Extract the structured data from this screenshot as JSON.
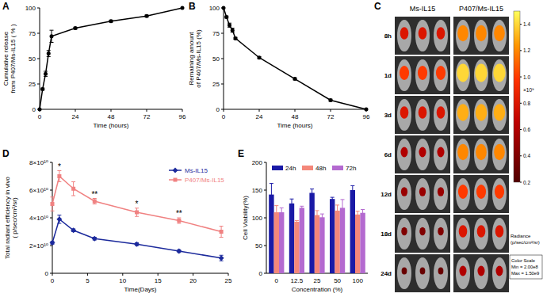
{
  "chart_data": [
    {
      "label": "A",
      "type": "line",
      "x_label": "Time (hours)",
      "y_label": [
        "Cumulative release",
        "from P407/Ms-IL15 ( % )"
      ],
      "x": [
        0,
        2,
        4,
        6,
        8,
        24,
        48,
        72,
        96
      ],
      "series": [
        {
          "color": "#000000",
          "marker": "circle",
          "values": [
            0,
            20,
            35,
            55,
            72,
            80,
            87,
            92,
            100
          ],
          "errors": [
            0,
            1,
            2.5,
            3,
            6,
            1,
            1,
            1,
            0
          ]
        }
      ],
      "xlim": [
        0,
        96
      ],
      "xticks": [
        0,
        24,
        48,
        72,
        96
      ],
      "ylim": [
        0,
        100
      ],
      "yticks": [
        0,
        25,
        50,
        75,
        100
      ]
    },
    {
      "label": "B",
      "type": "line",
      "x_label": "Time (hours)",
      "y_label": [
        "Remaining amount",
        "of P407/Ms-IL15 (%)"
      ],
      "x": [
        0,
        2,
        4,
        6,
        8,
        24,
        48,
        72,
        96
      ],
      "series": [
        {
          "color": "#000000",
          "marker": "circle",
          "values": [
            100,
            91,
            83,
            78,
            70,
            51,
            30,
            9,
            0
          ],
          "errors": [
            0,
            1,
            2,
            2,
            1,
            1,
            1,
            1,
            0
          ]
        }
      ],
      "xlim": [
        0,
        96
      ],
      "xticks": [
        0,
        24,
        48,
        72,
        96
      ],
      "ylim": [
        0,
        100
      ],
      "yticks": [
        0,
        25,
        50,
        75,
        100
      ]
    },
    {
      "label": "C",
      "type": "image",
      "columns": [
        "Ms-IL15",
        "P407/Ms-IL15"
      ],
      "rows": [
        "8h",
        "1d",
        "3d",
        "6d",
        "12d",
        "18d",
        "24d"
      ],
      "signal": [
        [
          800000000.0,
          1000000000.0,
          800000000.0,
          600000000.0,
          500000000.0,
          400000000.0,
          300000000.0
        ],
        [
          1200000000.0,
          1400000000.0,
          1300000000.0,
          1200000000.0,
          1000000000.0,
          800000000.0,
          600000000.0
        ]
      ],
      "colorbar": {
        "title": [
          "Radiance",
          "(p/sec/cm²/sr)"
        ],
        "multiplier": "×10⁹",
        "clim": [
          200000000.0,
          1500000000.0
        ],
        "cticks": [
          {
            "value": 1400000000.0,
            "label": "1.4"
          },
          {
            "value": 1200000000.0,
            "label": "1.2"
          },
          {
            "value": 1000000000.0,
            "label": "1.0"
          },
          {
            "value": 800000000.0,
            "label": "0.8"
          },
          {
            "value": 600000000.0,
            "label": "0.6"
          },
          {
            "value": 400000000.0,
            "label": "0.4"
          },
          {
            "value": 200000000.0,
            "label": "0.2"
          }
        ],
        "scale_note": [
          "Color Scale",
          "Min = 2.00e8",
          "Max = 1.50e9"
        ]
      }
    },
    {
      "label": "D",
      "type": "line",
      "x_label": "Time(Days)",
      "y_label": [
        "Total radiant efficiency in vivo",
        "( p/sec/cm²/sr)"
      ],
      "x": [
        0,
        1,
        3,
        6,
        12,
        18,
        24
      ],
      "legend": "top-right",
      "series": [
        {
          "name": "Ms-IL15",
          "color": "#1c2a9c",
          "marker": "diamond",
          "values": [
            22000000000.0,
            39000000000.0,
            31000000000.0,
            25000000000.0,
            21000000000.0,
            16000000000.0,
            11000000000.0
          ],
          "errors": [
            1000000000.0,
            3000000000.0,
            1000000000.0,
            1000000000.0,
            1000000000.0,
            1000000000.0,
            2000000000.0
          ]
        },
        {
          "name": "P407/Ms-IL15",
          "color": "#f08282",
          "marker": "square",
          "values": [
            50000000000.0,
            70000000000.0,
            61000000000.0,
            52000000000.0,
            44000000000.0,
            38000000000.0,
            30000000000.0
          ],
          "errors": [
            5000000000.0,
            4000000000.0,
            5000000000.0,
            2000000000.0,
            3000000000.0,
            2000000000.0,
            4000000000.0
          ]
        }
      ],
      "annotations": [
        {
          "x": 1,
          "text": "*"
        },
        {
          "x": 6,
          "text": "**"
        },
        {
          "x": 12,
          "text": "*"
        },
        {
          "x": 18,
          "text": "**"
        }
      ],
      "xlim": [
        0,
        25
      ],
      "xticks": [
        0,
        5,
        10,
        15,
        20,
        25
      ],
      "ylim": [
        0,
        80000000000.0
      ],
      "yticks": [
        0,
        {
          "value": 20000000000.0,
          "label": "2×10¹⁰"
        },
        {
          "value": 40000000000.0,
          "label": "4×10¹⁰"
        },
        {
          "value": 60000000000.0,
          "label": "6×10¹⁰"
        },
        {
          "value": 80000000000.0,
          "label": "8×10¹⁰"
        }
      ]
    },
    {
      "label": "E",
      "type": "bar",
      "x_label": "Concentration (%)",
      "y_label": "Cell Viability(%)",
      "legend": "top",
      "categories": [
        "0",
        "12.5",
        "25",
        "50",
        "100"
      ],
      "series": [
        {
          "name": "24h",
          "color": "#1a1aa6",
          "values": [
            142,
            126,
            145,
            134,
            150
          ],
          "errors": [
            20,
            8,
            7,
            3,
            8
          ]
        },
        {
          "name": "48h",
          "color": "#f4877a",
          "values": [
            110,
            93,
            105,
            113,
            106
          ],
          "errors": [
            12,
            2,
            8,
            10,
            6
          ]
        },
        {
          "name": "72h",
          "color": "#b46ad0",
          "values": [
            110,
            118,
            101,
            118,
            109
          ],
          "errors": [
            8,
            3,
            6,
            15,
            6
          ]
        }
      ],
      "ylim": [
        0,
        200
      ],
      "yticks": [
        0,
        50,
        100,
        150,
        200
      ]
    }
  ]
}
